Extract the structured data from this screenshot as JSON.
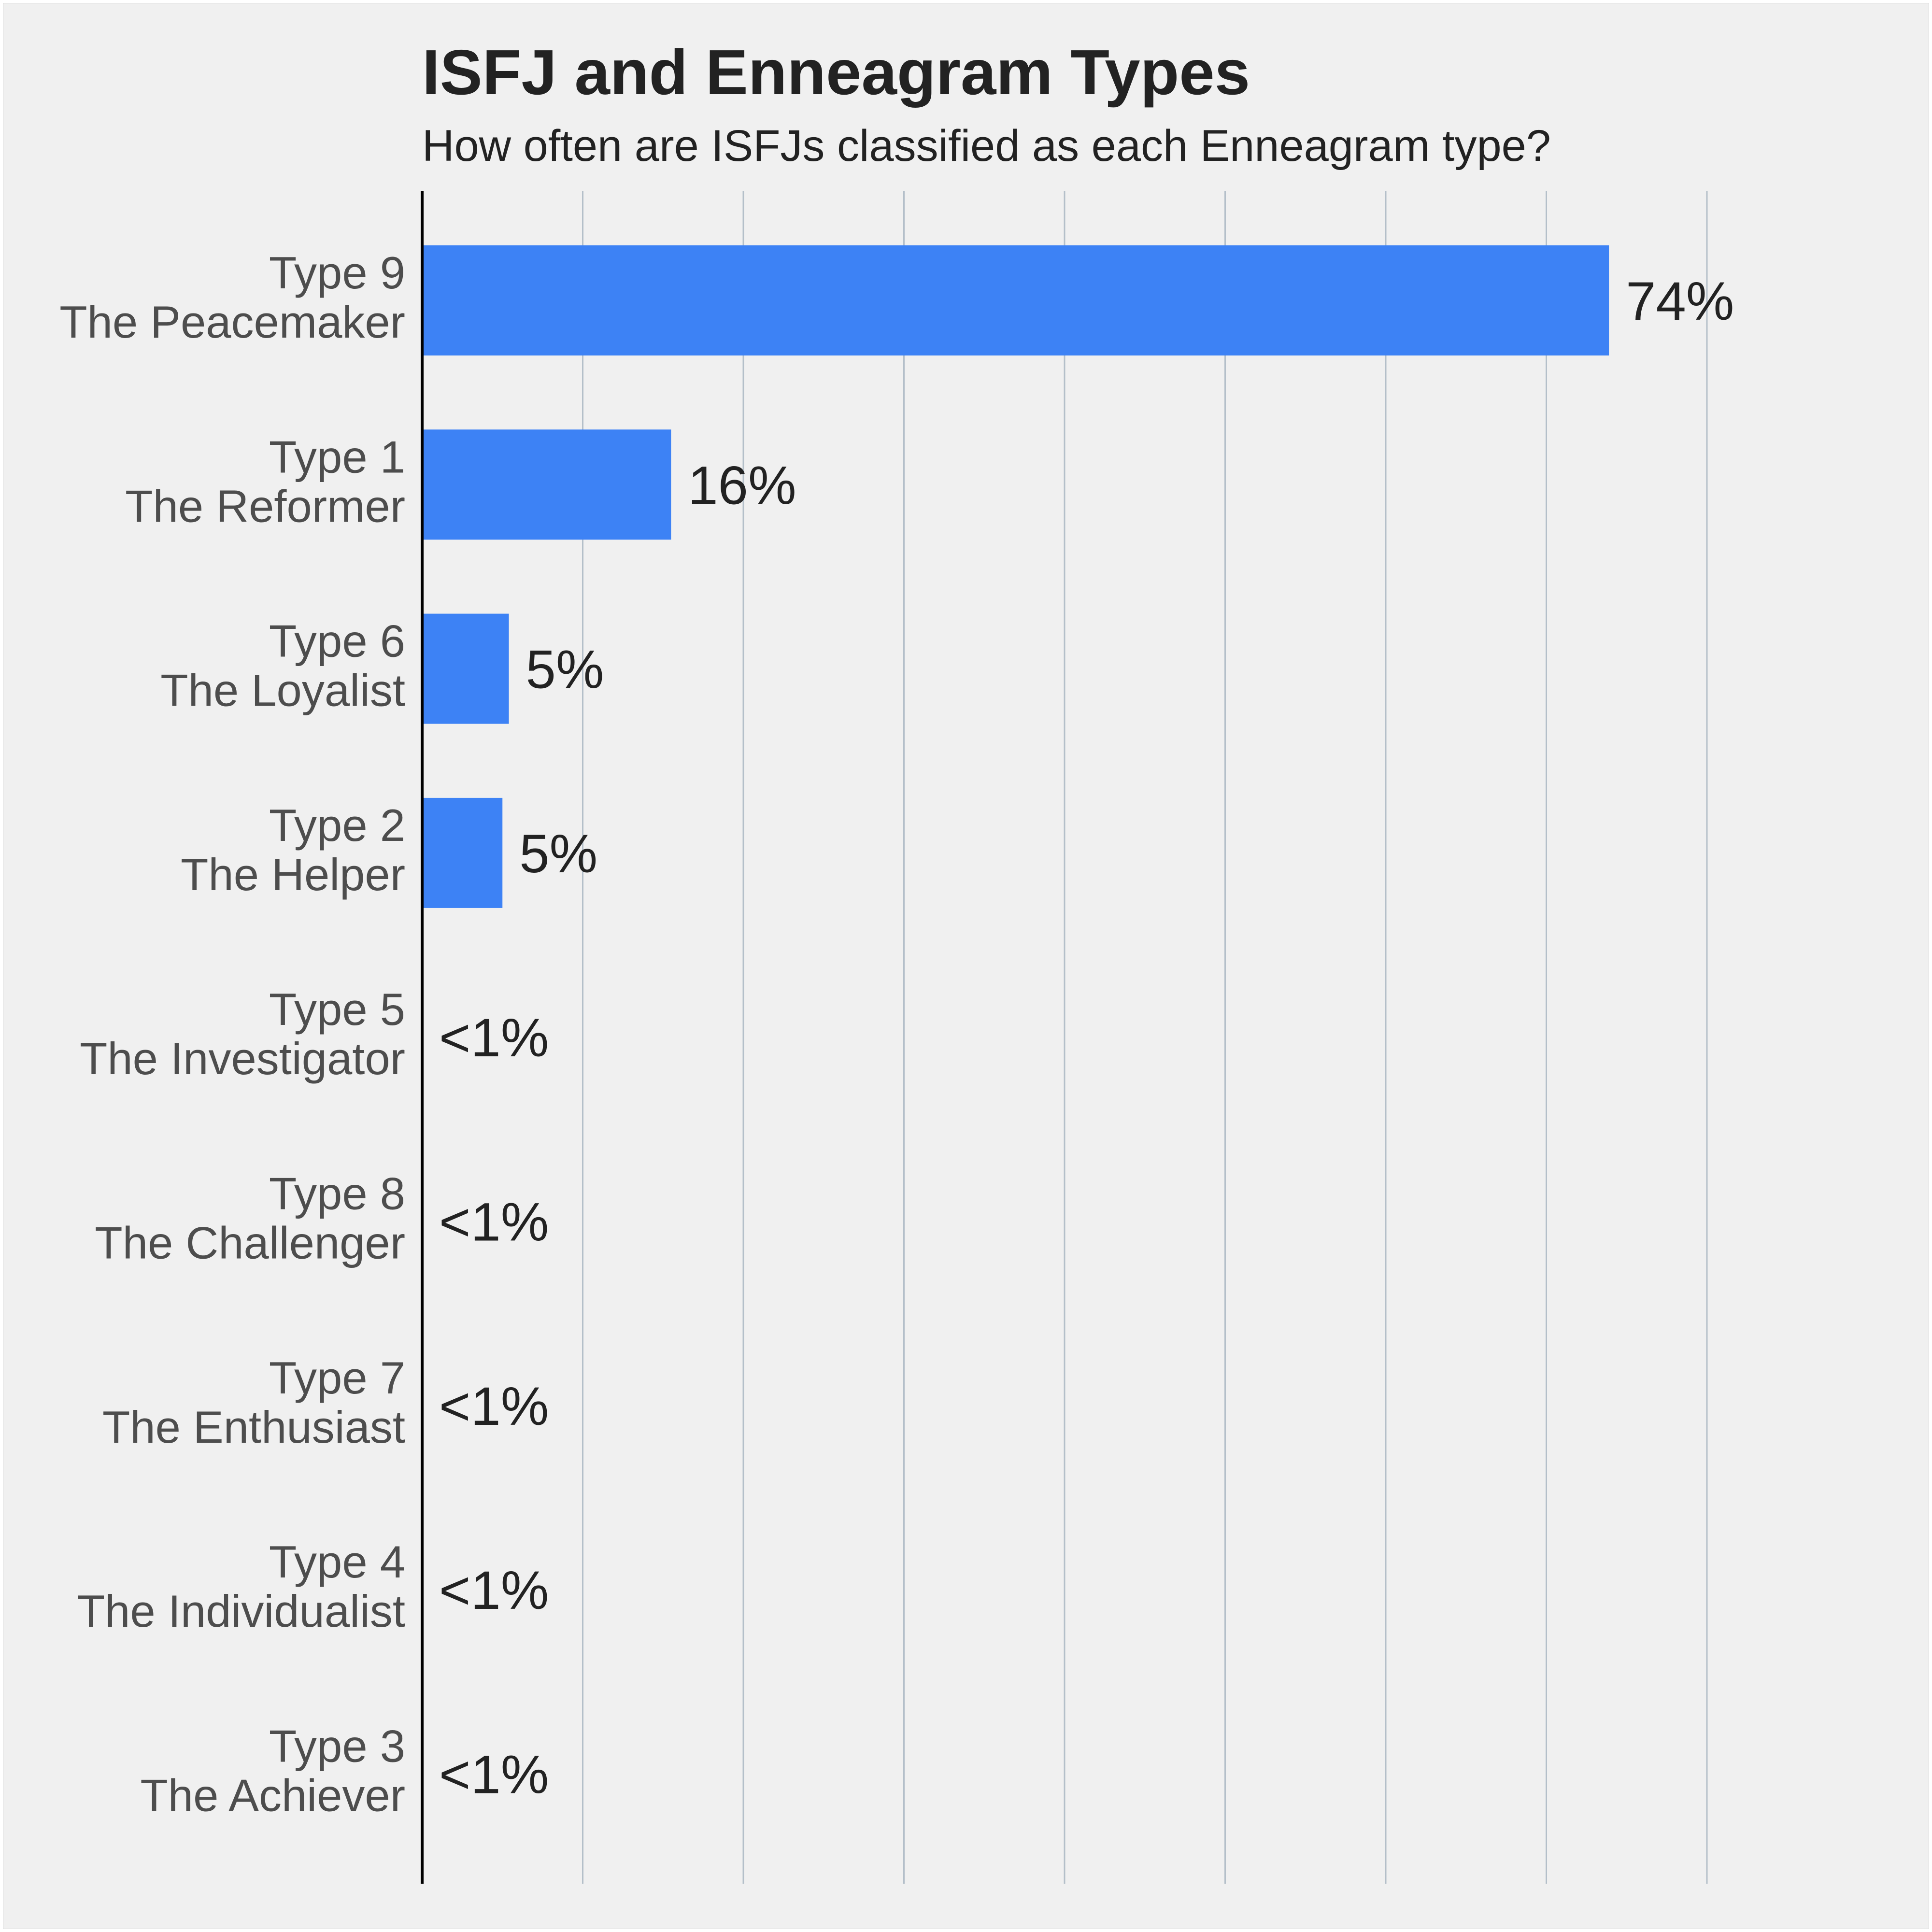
{
  "colors": {
    "background": "#f0f0f0",
    "bar": "#3d82f5",
    "grid": "#b4bfc9",
    "axis": "#000000",
    "text": "#222222",
    "category_text": "#4d4d4d"
  },
  "chart_data": {
    "type": "bar",
    "orientation": "horizontal",
    "title": "ISFJ and Enneagram Types",
    "subtitle": "How often are ISFJs classified as each Enneagram type?",
    "xlabel": "",
    "ylabel": "",
    "xlim": [
      0,
      80
    ],
    "grid": true,
    "x_tick_labels_visible": false,
    "categories": [
      [
        "Type 9",
        "The Peacemaker"
      ],
      [
        "Type 1",
        "The Reformer"
      ],
      [
        "Type 6",
        "The Loyalist"
      ],
      [
        "Type 2",
        "The Helper"
      ],
      [
        "Type 5",
        "The Investigator"
      ],
      [
        "Type 8",
        "The Challenger"
      ],
      [
        "Type 7",
        "The Enthusiast"
      ],
      [
        "Type 4",
        "The Individualist"
      ],
      [
        "Type 3",
        "The Achiever"
      ]
    ],
    "values": [
      73.9,
      15.5,
      5.4,
      5.0,
      0,
      0,
      0,
      0,
      0
    ],
    "value_labels": [
      "74%",
      "16%",
      "5%",
      "5%",
      "<1%",
      "<1%",
      "<1%",
      "<1%",
      "<1%"
    ]
  }
}
